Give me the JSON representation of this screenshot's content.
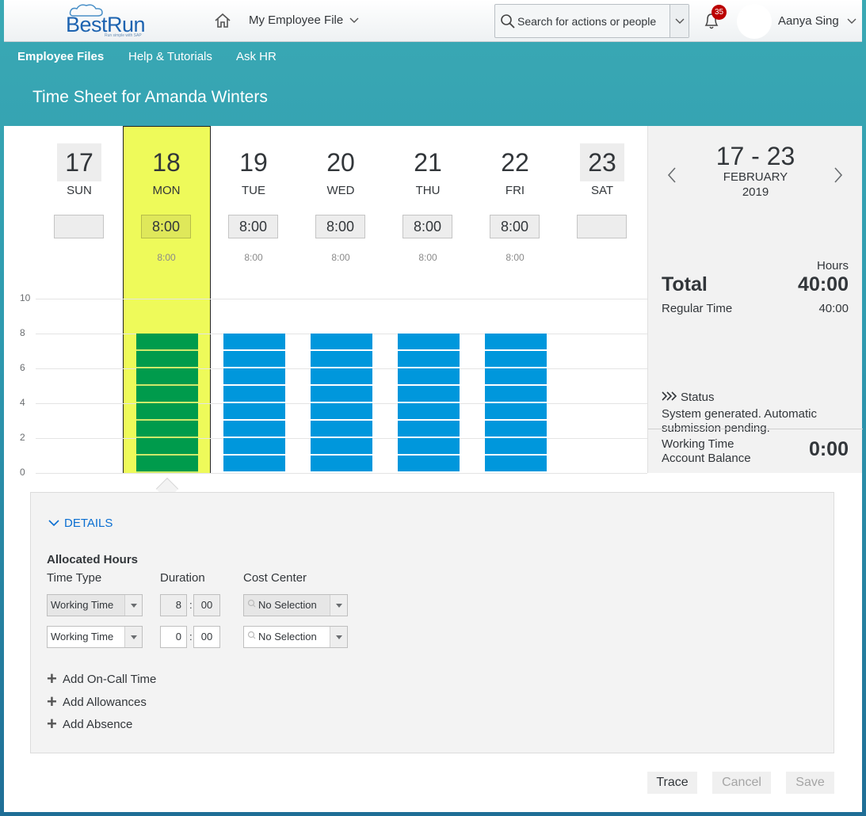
{
  "shell": {
    "logo_text": "BestRun",
    "logo_tagline": "Run simple with SAP",
    "menu_label": "My Employee File",
    "search_placeholder": "Search for actions or people",
    "notification_count": "35",
    "user_name": "Aanya Sing"
  },
  "subnav": [
    "Employee Files",
    "Help & Tutorials",
    "Ask HR"
  ],
  "page_title": "Time Sheet for Amanda Winters",
  "days": [
    {
      "num": "17",
      "name": "SUN",
      "value": "",
      "planned": ""
    },
    {
      "num": "18",
      "name": "MON",
      "value": "8:00",
      "planned": "8:00"
    },
    {
      "num": "19",
      "name": "TUE",
      "value": "8:00",
      "planned": "8:00"
    },
    {
      "num": "20",
      "name": "WED",
      "value": "8:00",
      "planned": "8:00"
    },
    {
      "num": "21",
      "name": "THU",
      "value": "8:00",
      "planned": "8:00"
    },
    {
      "num": "22",
      "name": "FRI",
      "value": "8:00",
      "planned": "8:00"
    },
    {
      "num": "23",
      "name": "SAT",
      "value": "",
      "planned": ""
    }
  ],
  "chart_data": {
    "type": "bar",
    "categories": [
      "SUN",
      "MON",
      "TUE",
      "WED",
      "THU",
      "FRI",
      "SAT"
    ],
    "values": [
      0,
      8,
      8,
      8,
      8,
      8,
      0
    ],
    "selected": "MON",
    "ylim": [
      0,
      10
    ],
    "yticks": [
      "0",
      "2",
      "4",
      "6",
      "8",
      "10"
    ],
    "colors": {
      "selected": "#009b4c",
      "default": "#0097dc",
      "highlight": "#eefa5a"
    }
  },
  "summary": {
    "range": "17 - 23",
    "month": "FEBRUARY",
    "year": "2019",
    "hours_label": "Hours",
    "total_label": "Total",
    "total_value": "40:00",
    "regular_label": "Regular Time",
    "regular_value": "40:00",
    "status_label": "Status",
    "status_text": "System generated. Automatic submission pending.",
    "balance_label": "Working Time Account Balance",
    "balance_value": "0:00"
  },
  "details": {
    "toggle_label": "DETAILS",
    "alloc_title": "Allocated Hours",
    "col_time_type": "Time Type",
    "col_duration": "Duration",
    "col_cost_center": "Cost Center",
    "rows": [
      {
        "time_type": "Working Time",
        "hours": "8",
        "minutes": "00",
        "cost_center": "No Selection"
      },
      {
        "time_type": "Working Time",
        "hours": "0",
        "minutes": "00",
        "cost_center": "No Selection"
      }
    ],
    "add_oncall": "Add On-Call Time",
    "add_allowances": "Add Allowances",
    "add_absence": "Add Absence"
  },
  "footer": {
    "trace": "Trace",
    "cancel": "Cancel",
    "save": "Save"
  }
}
